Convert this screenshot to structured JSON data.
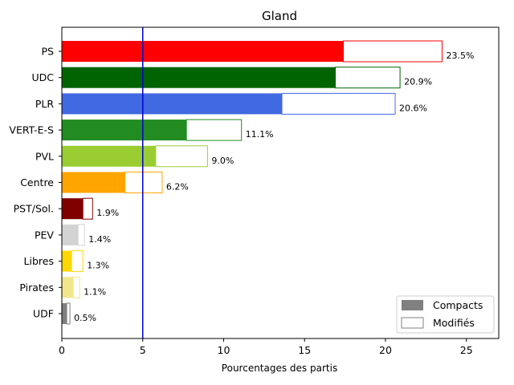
{
  "chart_data": {
    "type": "bar",
    "orientation": "horizontal",
    "stacked": true,
    "title": "Gland",
    "xlabel": "Pourcentages des partis",
    "ylabel": "",
    "xlim": [
      0,
      27
    ],
    "xticks": [
      0,
      5,
      10,
      15,
      20,
      25
    ],
    "reference_line": {
      "x": 5,
      "color": "#0000cc"
    },
    "legend_position": "bottom-right",
    "legend": [
      {
        "label": "Compacts",
        "style": "filled",
        "color": "#808080"
      },
      {
        "label": "Modifiés",
        "style": "outline",
        "color": "#808080"
      }
    ],
    "categories": [
      "PS",
      "UDC",
      "PLR",
      "VERT-E-S",
      "PVL",
      "Centre",
      "PST/Sol.",
      "PEV",
      "Libres",
      "Pirates",
      "UDF"
    ],
    "series": [
      {
        "name": "Compacts",
        "values": [
          17.4,
          16.9,
          13.6,
          7.7,
          5.8,
          3.9,
          1.3,
          1.0,
          0.6,
          0.7,
          0.3
        ]
      },
      {
        "name": "Modifiés",
        "values": [
          6.1,
          4.0,
          7.0,
          3.4,
          3.2,
          2.3,
          0.6,
          0.4,
          0.7,
          0.4,
          0.2
        ]
      }
    ],
    "totals_labels": [
      "23.5%",
      "20.9%",
      "20.6%",
      "11.1%",
      "9.0%",
      "6.2%",
      "1.9%",
      "1.4%",
      "1.3%",
      "1.1%",
      "0.5%"
    ],
    "colors": [
      "#ff0000",
      "#006400",
      "#4169e1",
      "#228b22",
      "#9acd32",
      "#ffa500",
      "#800000",
      "#d3d3d3",
      "#ffd700",
      "#f0e68c",
      "#808080"
    ]
  }
}
